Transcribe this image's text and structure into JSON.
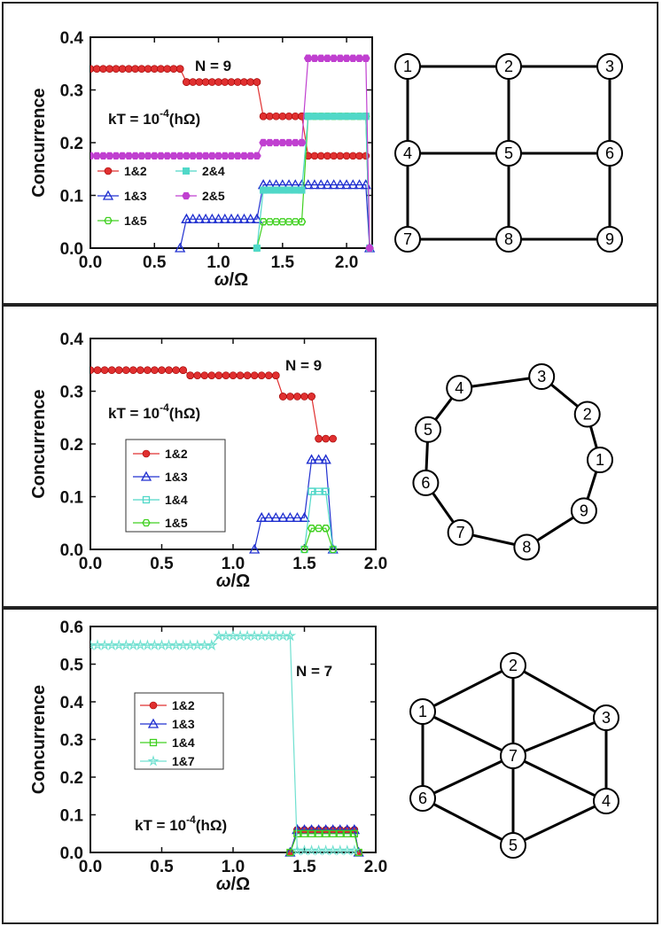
{
  "common": {
    "xlabel_main": "ω",
    "xlabel_sub": "/Ω",
    "ylabel": "Concurrence",
    "kT_text": "kT = 10",
    "kT_exp": "-4",
    "kT_units": "(hΩ)"
  },
  "panels": [
    {
      "id": "p1",
      "N_label": "N = 9",
      "graph_nodes": [
        "1",
        "2",
        "3",
        "4",
        "5",
        "6",
        "7",
        "8",
        "9"
      ],
      "chart_data": {
        "type": "line",
        "xlim": [
          0,
          2.2
        ],
        "ylim": [
          0,
          0.4
        ],
        "xticks": [
          "0.0",
          "0.5",
          "1.0",
          "1.5",
          "2.0"
        ],
        "yticks": [
          "0.0",
          "0.1",
          "0.2",
          "0.3",
          "0.4"
        ],
        "series": [
          {
            "name": "1&2",
            "color": "#e03030",
            "marker": "circle",
            "x": [
              0,
              0.7,
              0.75,
              1.3,
              1.35,
              1.65,
              1.7,
              2.15
            ],
            "y": [
              0.34,
              0.34,
              0.315,
              0.315,
              0.25,
              0.25,
              0.175,
              0.175
            ]
          },
          {
            "name": "1&3",
            "color": "#2030d0",
            "marker": "triangle",
            "x": [
              0.7,
              0.75,
              1.3,
              1.35,
              2.15,
              2.18
            ],
            "y": [
              0,
              0.055,
              0.055,
              0.12,
              0.12,
              0
            ]
          },
          {
            "name": "1&5",
            "color": "#40d020",
            "marker": "hexagon-open",
            "x": [
              1.3,
              1.35,
              1.65,
              1.7,
              2.15,
              2.18
            ],
            "y": [
              0,
              0.05,
              0.05,
              0.25,
              0.25,
              0
            ]
          },
          {
            "name": "2&4",
            "color": "#50d8c8",
            "marker": "square",
            "x": [
              1.3,
              1.35,
              1.65,
              1.7,
              2.15,
              2.18
            ],
            "y": [
              0,
              0.11,
              0.11,
              0.25,
              0.25,
              0
            ]
          },
          {
            "name": "2&5",
            "color": "#c040d0",
            "marker": "hexagon",
            "x": [
              0,
              1.3,
              1.35,
              1.65,
              1.7,
              2.15,
              2.18
            ],
            "y": [
              0.175,
              0.175,
              0.2,
              0.2,
              0.36,
              0.36,
              0
            ]
          }
        ]
      }
    },
    {
      "id": "p2",
      "N_label": "N = 9",
      "graph_nodes": [
        "3",
        "2",
        "1",
        "9",
        "8",
        "7",
        "6",
        "5",
        "4"
      ],
      "chart_data": {
        "type": "line",
        "xlim": [
          0,
          2.0
        ],
        "ylim": [
          0,
          0.4
        ],
        "xticks": [
          "0.0",
          "0.5",
          "1.0",
          "1.5",
          "2.0"
        ],
        "yticks": [
          "0.0",
          "0.1",
          "0.2",
          "0.3",
          "0.4"
        ],
        "series": [
          {
            "name": "1&2",
            "color": "#e03030",
            "marker": "circle",
            "x": [
              0,
              0.65,
              0.7,
              1.3,
              1.35,
              1.55,
              1.6,
              1.7
            ],
            "y": [
              0.34,
              0.34,
              0.33,
              0.33,
              0.29,
              0.29,
              0.21,
              0.21
            ]
          },
          {
            "name": "1&3",
            "color": "#2030d0",
            "marker": "triangle",
            "x": [
              1.15,
              1.2,
              1.5,
              1.55,
              1.65,
              1.7
            ],
            "y": [
              0,
              0.06,
              0.06,
              0.17,
              0.17,
              0
            ]
          },
          {
            "name": "1&4",
            "color": "#50d8c8",
            "marker": "square-open",
            "x": [
              1.5,
              1.55,
              1.65,
              1.7
            ],
            "y": [
              0,
              0.11,
              0.11,
              0
            ]
          },
          {
            "name": "1&5",
            "color": "#40d020",
            "marker": "hexagon-open",
            "x": [
              1.5,
              1.55,
              1.65,
              1.7
            ],
            "y": [
              0,
              0.04,
              0.04,
              0
            ]
          }
        ]
      }
    },
    {
      "id": "p3",
      "N_label": "N = 7",
      "graph_nodes": [
        "1",
        "2",
        "3",
        "4",
        "5",
        "6",
        "7"
      ],
      "chart_data": {
        "type": "line",
        "xlim": [
          0,
          2.0
        ],
        "ylim": [
          0,
          0.6
        ],
        "xticks": [
          "0.0",
          "0.5",
          "1.0",
          "1.5",
          "2.0"
        ],
        "yticks": [
          "0.0",
          "0.1",
          "0.2",
          "0.3",
          "0.4",
          "0.5",
          "0.6"
        ],
        "series": [
          {
            "name": "1&2",
            "color": "#e03030",
            "marker": "circle",
            "x": [
              1.4,
              1.45,
              1.85,
              1.88
            ],
            "y": [
              0,
              0.06,
              0.06,
              0
            ]
          },
          {
            "name": "1&3",
            "color": "#2030d0",
            "marker": "triangle",
            "x": [
              1.4,
              1.45,
              1.85,
              1.88
            ],
            "y": [
              0,
              0.06,
              0.06,
              0
            ]
          },
          {
            "name": "1&4",
            "color": "#40d020",
            "marker": "square-open",
            "x": [
              1.4,
              1.45,
              1.85,
              1.88
            ],
            "y": [
              0,
              0.05,
              0.05,
              0
            ]
          },
          {
            "name": "1&7",
            "color": "#70e0d0",
            "marker": "star",
            "x": [
              0,
              0.85,
              0.9,
              1.4,
              1.45,
              1.85
            ],
            "y": [
              0.55,
              0.55,
              0.575,
              0.575,
              0.005,
              0.005
            ]
          }
        ]
      }
    }
  ]
}
